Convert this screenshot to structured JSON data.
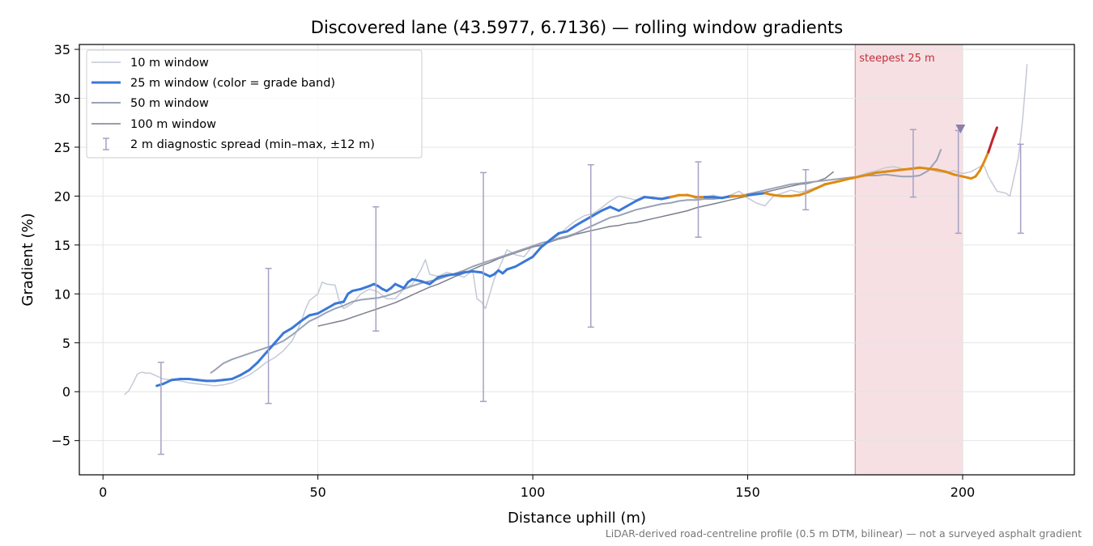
{
  "chart_data": {
    "type": "line",
    "title": "Discovered lane (43.5977, 6.7136) — rolling window gradients",
    "xlabel": "Distance uphill (m)",
    "ylabel": "Gradient (%)",
    "xlim": [
      -5.5,
      226
    ],
    "ylim": [
      -8.5,
      35.5
    ],
    "xticks": [
      0,
      50,
      100,
      150,
      200
    ],
    "yticks": [
      -5,
      0,
      5,
      10,
      15,
      20,
      25,
      30,
      35
    ],
    "grid": true,
    "legend_position": "top-left",
    "footnote": "LiDAR-derived road-centreline profile (0.5 m DTM, bilinear) — not a surveyed asphalt gradient",
    "colors": {
      "w10": "#c4c9d6",
      "w25": "#3a78d8",
      "w50": "#9aa2b5",
      "w100": "#7a7f8e",
      "errorbar": "#a6a1c4",
      "band_fill": "#f3d6da",
      "band_edge": "#c98a93",
      "band_label": "#c0303a",
      "grade_mid": "#e08a10",
      "grade_high": "#c0242c",
      "marker": "#8a7fae"
    },
    "legend": [
      "10 m window",
      "25 m window (color = grade band)",
      "50 m window",
      "100 m window",
      "2 m diagnostic spread (min–max, ±12 m)"
    ],
    "highlight_band": {
      "x_start": 175,
      "x_end": 200,
      "label": "steepest 25 m"
    },
    "marker": {
      "x": 199.5,
      "y": 26.9
    },
    "series": [
      {
        "name": "10 m window",
        "x": [
          5,
          6,
          7,
          8,
          9,
          10,
          11,
          12,
          14,
          16,
          18,
          20,
          22,
          24,
          26,
          28,
          30,
          32,
          34,
          36,
          38,
          40,
          42,
          44,
          46,
          47,
          48,
          50,
          51,
          52,
          54,
          55,
          56,
          58,
          60,
          62,
          64,
          66,
          68,
          70,
          72,
          74,
          75,
          76,
          78,
          80,
          82,
          84,
          86,
          87,
          88,
          89,
          90,
          91,
          92,
          94,
          96,
          98,
          100,
          102,
          104,
          106,
          108,
          110,
          112,
          114,
          116,
          118,
          120,
          122,
          124,
          126,
          128,
          130,
          132,
          134,
          136,
          138,
          140,
          142,
          144,
          146,
          148,
          150,
          152,
          154,
          156,
          158,
          160,
          162,
          164,
          166,
          168,
          170,
          172,
          174,
          176,
          178,
          180,
          182,
          184,
          186,
          188,
          190,
          192,
          194,
          196,
          198,
          200,
          202,
          204,
          205,
          206,
          208,
          210,
          211,
          212,
          213,
          214,
          215
        ],
        "y": [
          -0.3,
          0.1,
          0.9,
          1.8,
          2.0,
          1.9,
          1.9,
          1.7,
          1.3,
          1.2,
          1.1,
          0.9,
          0.8,
          0.7,
          0.6,
          0.7,
          0.9,
          1.3,
          1.7,
          2.3,
          3.0,
          3.5,
          4.2,
          5.2,
          7.0,
          8.3,
          9.3,
          10.0,
          11.2,
          11.0,
          10.9,
          9.2,
          8.5,
          9.0,
          10.0,
          10.5,
          10.2,
          9.5,
          9.5,
          10.5,
          11.0,
          12.5,
          13.5,
          12.0,
          11.8,
          12.2,
          12.0,
          11.7,
          12.4,
          9.5,
          9.2,
          8.5,
          10.0,
          11.5,
          12.5,
          14.5,
          14.0,
          13.8,
          15.0,
          14.8,
          15.5,
          16.0,
          16.8,
          17.5,
          18.0,
          18.2,
          18.8,
          19.5,
          20.0,
          19.8,
          19.6,
          20.0,
          19.7,
          19.8,
          19.8,
          20.0,
          20.2,
          19.7,
          19.9,
          20.1,
          19.8,
          20.1,
          20.5,
          19.8,
          19.3,
          19.0,
          20.0,
          20.3,
          20.6,
          20.4,
          20.6,
          20.9,
          21.3,
          21.4,
          21.6,
          21.8,
          22.1,
          22.4,
          22.6,
          22.9,
          23.0,
          22.8,
          22.7,
          22.9,
          22.8,
          22.5,
          22.4,
          22.6,
          22.3,
          22.5,
          23.0,
          23.1,
          22.0,
          20.5,
          20.3,
          20.0,
          22.0,
          24.0,
          28.0,
          33.5
        ]
      },
      {
        "name": "25 m window",
        "x": [
          12.5,
          14,
          16,
          18,
          20,
          22,
          24,
          26,
          28,
          30,
          32,
          34,
          36,
          38,
          40,
          42,
          44,
          46,
          48,
          50,
          52,
          54,
          56,
          57,
          58,
          60,
          62,
          63,
          64,
          65,
          66,
          67,
          68,
          69,
          70,
          71,
          72,
          74,
          76,
          78,
          80,
          82,
          84,
          86,
          88,
          90,
          91,
          92,
          93,
          94,
          96,
          98,
          100,
          102,
          104,
          106,
          108,
          110,
          112,
          114,
          116,
          118,
          120,
          122,
          124,
          126,
          128,
          130,
          132,
          134,
          136,
          138,
          140,
          142,
          144,
          146,
          148,
          150,
          152,
          154,
          156,
          158,
          160,
          162,
          164,
          166,
          168,
          170,
          172,
          174,
          176,
          178,
          180,
          182,
          184,
          186,
          188,
          190,
          192,
          194,
          196,
          198,
          200,
          202,
          203,
          204,
          205,
          206,
          207,
          208
        ],
        "y": [
          0.6,
          0.8,
          1.2,
          1.3,
          1.3,
          1.2,
          1.1,
          1.1,
          1.2,
          1.3,
          1.7,
          2.2,
          3.0,
          4.0,
          5.0,
          6.0,
          6.5,
          7.2,
          7.8,
          8.0,
          8.5,
          9.0,
          9.2,
          10.0,
          10.3,
          10.5,
          10.8,
          11.0,
          10.8,
          10.5,
          10.3,
          10.6,
          11.0,
          10.8,
          10.6,
          11.2,
          11.5,
          11.3,
          11.0,
          11.7,
          11.9,
          12.0,
          12.2,
          12.3,
          12.2,
          11.8,
          12.0,
          12.4,
          12.1,
          12.5,
          12.8,
          13.3,
          13.8,
          14.8,
          15.5,
          16.2,
          16.4,
          17.0,
          17.5,
          18.0,
          18.5,
          18.9,
          18.5,
          19.0,
          19.5,
          19.9,
          19.8,
          19.7,
          19.9,
          20.1,
          20.1,
          19.9,
          19.9,
          19.9,
          19.8,
          20.0,
          20.0,
          20.1,
          20.2,
          20.3,
          20.1,
          20.0,
          20.0,
          20.1,
          20.4,
          20.8,
          21.2,
          21.4,
          21.6,
          21.8,
          22.0,
          22.2,
          22.4,
          22.5,
          22.6,
          22.7,
          22.8,
          22.9,
          22.8,
          22.7,
          22.5,
          22.2,
          22.0,
          21.8,
          22.0,
          22.6,
          23.5,
          24.5,
          25.8,
          27.0
        ]
      },
      {
        "name": "50 m window",
        "x": [
          25,
          26,
          28,
          30,
          32,
          34,
          36,
          38,
          40,
          42,
          44,
          46,
          48,
          50,
          52,
          54,
          56,
          58,
          60,
          62,
          64,
          66,
          68,
          70,
          72,
          74,
          76,
          78,
          80,
          82,
          84,
          86,
          88,
          90,
          92,
          94,
          96,
          98,
          100,
          102,
          104,
          106,
          108,
          110,
          112,
          114,
          116,
          118,
          120,
          122,
          124,
          126,
          128,
          130,
          132,
          134,
          136,
          138,
          140,
          142,
          144,
          146,
          148,
          150,
          152,
          154,
          156,
          158,
          160,
          162,
          164,
          166,
          168,
          170,
          172,
          174,
          176,
          178,
          180,
          182,
          184,
          186,
          188,
          190,
          192,
          194,
          195
        ],
        "y": [
          1.9,
          2.2,
          2.9,
          3.3,
          3.6,
          3.9,
          4.2,
          4.5,
          4.8,
          5.2,
          5.8,
          6.5,
          7.2,
          7.6,
          8.1,
          8.5,
          8.8,
          9.2,
          9.4,
          9.5,
          9.6,
          9.8,
          10.1,
          10.5,
          10.8,
          11.1,
          11.3,
          11.5,
          11.8,
          12.1,
          12.4,
          12.8,
          13.1,
          13.4,
          13.7,
          14.0,
          14.3,
          14.6,
          14.9,
          15.2,
          15.4,
          15.7,
          15.9,
          16.2,
          16.6,
          17.0,
          17.4,
          17.8,
          18.0,
          18.3,
          18.6,
          18.8,
          19.0,
          19.2,
          19.3,
          19.5,
          19.6,
          19.6,
          19.7,
          19.7,
          19.8,
          19.9,
          20.0,
          20.2,
          20.4,
          20.6,
          20.8,
          21.0,
          21.2,
          21.3,
          21.4,
          21.5,
          21.6,
          21.7,
          21.8,
          21.9,
          22.0,
          22.1,
          22.1,
          22.2,
          22.1,
          22.0,
          22.0,
          22.1,
          22.6,
          23.7,
          24.8
        ]
      },
      {
        "name": "100 m window",
        "x": [
          50,
          52,
          54,
          56,
          58,
          60,
          62,
          64,
          66,
          68,
          70,
          72,
          74,
          76,
          78,
          80,
          82,
          84,
          86,
          88,
          90,
          92,
          94,
          96,
          98,
          100,
          102,
          104,
          106,
          108,
          110,
          112,
          114,
          116,
          118,
          120,
          122,
          124,
          126,
          128,
          130,
          132,
          134,
          136,
          138,
          140,
          142,
          144,
          146,
          148,
          150,
          152,
          154,
          156,
          158,
          160,
          162,
          164,
          166,
          168,
          170
        ],
        "y": [
          6.7,
          6.9,
          7.1,
          7.3,
          7.6,
          7.9,
          8.2,
          8.5,
          8.8,
          9.1,
          9.5,
          9.9,
          10.3,
          10.7,
          11.0,
          11.4,
          11.8,
          12.1,
          12.5,
          12.9,
          13.2,
          13.6,
          13.9,
          14.2,
          14.5,
          14.8,
          15.0,
          15.3,
          15.6,
          15.8,
          16.1,
          16.3,
          16.5,
          16.7,
          16.9,
          17.0,
          17.2,
          17.3,
          17.5,
          17.7,
          17.9,
          18.1,
          18.3,
          18.5,
          18.8,
          19.0,
          19.2,
          19.4,
          19.6,
          19.8,
          20.0,
          20.2,
          20.4,
          20.6,
          20.8,
          21.0,
          21.2,
          21.3,
          21.5,
          21.8,
          22.5
        ]
      }
    ],
    "grade_segments": [
      {
        "band": "mid",
        "x_range": [
          133,
          140
        ]
      },
      {
        "band": "mid",
        "x_range": [
          147,
          150
        ]
      },
      {
        "band": "mid",
        "x_range": [
          155,
          207
        ]
      },
      {
        "band": "high",
        "x_range": [
          206,
          208
        ]
      }
    ],
    "error_bars": [
      {
        "x": 13.5,
        "y": 0.7,
        "low": -6.4,
        "high": 3.0
      },
      {
        "x": 38.5,
        "y": 4.5,
        "low": -1.2,
        "high": 12.6
      },
      {
        "x": 63.5,
        "y": 10.8,
        "low": 6.2,
        "high": 18.9
      },
      {
        "x": 88.5,
        "y": 12.3,
        "low": -1.0,
        "high": 22.4
      },
      {
        "x": 113.5,
        "y": 17.2,
        "low": 6.6,
        "high": 23.2
      },
      {
        "x": 138.5,
        "y": 19.9,
        "low": 15.8,
        "high": 23.5
      },
      {
        "x": 163.5,
        "y": 20.5,
        "low": 18.6,
        "high": 22.7
      },
      {
        "x": 188.5,
        "y": 22.8,
        "low": 19.9,
        "high": 26.8
      },
      {
        "x": 199.0,
        "y": 22.0,
        "low": 16.2,
        "high": 26.7
      },
      {
        "x": 213.5,
        "y": 23.0,
        "low": 16.2,
        "high": 25.3
      }
    ]
  }
}
